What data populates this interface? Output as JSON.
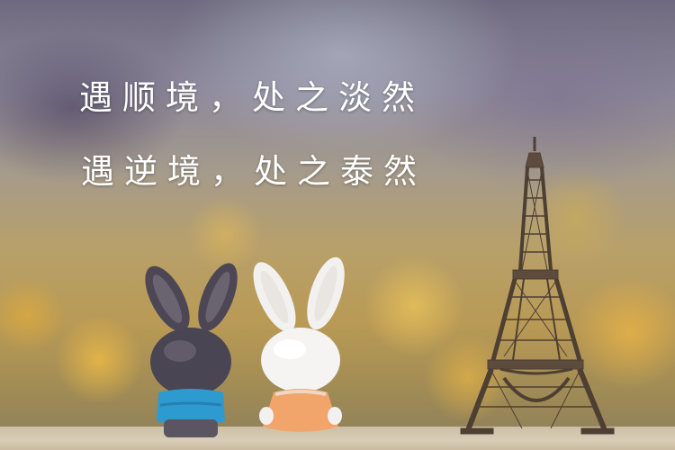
{
  "caption": {
    "line1": "遇顺境，处之淡然",
    "line2": "遇逆境，处之泰然"
  },
  "figures": [
    "dark-rabbit-figurine",
    "white-rabbit-figurine",
    "eiffel-tower-model"
  ],
  "colors": {
    "text": "#ffffff",
    "dark_rabbit_body": "#4a4552",
    "dark_rabbit_shirt": "#2d9ad0",
    "white_rabbit_dress": "#f1a56b",
    "tower": "#4e3f33"
  }
}
